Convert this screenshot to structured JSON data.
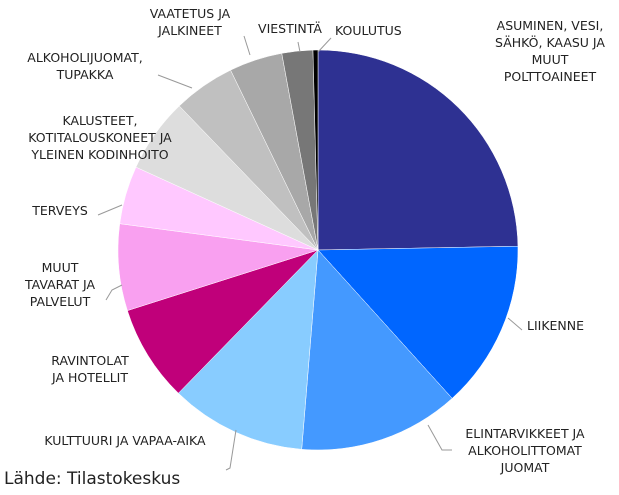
{
  "chart_data": {
    "type": "pie",
    "categories": [
      "ASUMINEN, VESI,\nSÄHKÖ, KAASU JA\nMUUT\nPOLTTOAINEET",
      "LIIKENNE",
      "ELINTARVIKKEET JA\nALKOHOLITTOMAT\nJUOMAT",
      "KULTTUURI JA VAPAA-AIKA",
      "RAVINTOLAT\nJA HOTELLIT",
      "MUUT\nTAVARAT JA\nPALVELUT",
      "TERVEYS",
      "KALUSTEET,\nKOTITALOUSKONEET JA\nYLEINEN KODINHOITO",
      "ALKOHOLIJUOMAT,\nTUPAKKA",
      "VAATETUS JA\nJALKINEET",
      "VIESTINTÄ",
      "KOULUTUS"
    ],
    "values": [
      24.7,
      13.6,
      13,
      11,
      7.8,
      7,
      4.7,
      6,
      5,
      4.3,
      2.5,
      0.4
    ],
    "colors": [
      "#2e3192",
      "#0066ff",
      "#4499ff",
      "#88ccff",
      "#c0007a",
      "#f9a0f0",
      "#ffc8ff",
      "#dddddd",
      "#c0c0c0",
      "#a8a8a8",
      "#777777",
      "#000000"
    ],
    "source": "Lähde: Tilastokeskus"
  }
}
